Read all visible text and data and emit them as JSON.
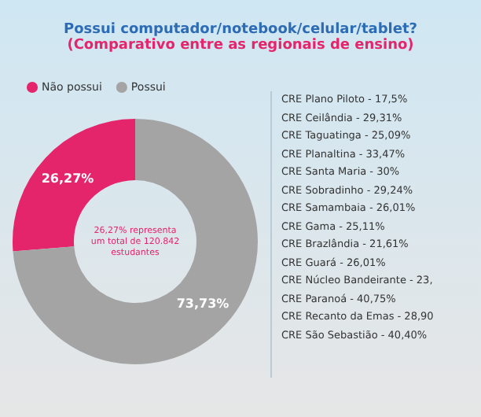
{
  "chart_data": {
    "type": "donut",
    "title": "Possui computador/notebook/celular/tablet?",
    "subtitle": "(Comparativo entre as regionais de ensino)",
    "categories": [
      "Não possui",
      "Possui"
    ],
    "values": [
      26.27,
      73.73
    ],
    "colors": [
      "#e5256b",
      "#a4a4a4"
    ],
    "value_labels": [
      "26,27%",
      "73,73%"
    ],
    "legend": "top left",
    "annotations": [
      "26,27% representa um total de 120.842 estudantes",
      "CRE Plano Piloto - 17,5%",
      "CRE Ceilândia - 29,31%",
      "CRE Taguatinga - 25,09%",
      "CRE Planaltina - 33,47%",
      "CRE Santa Maria - 30%",
      "CRE Sobradinho - 29,24%",
      "CRE Samambaia - 26,01%",
      "CRE Gama - 25,11%",
      "CRE Brazlândia - 21,61%",
      "CRE Guará - 26,01%",
      "CRE Núcleo Bandeirante - 23,",
      "CRE Paranoá - 40,75%",
      "CRE Recanto da Emas - 28,90",
      "CRE São Sebastião - 40,40%"
    ]
  }
}
